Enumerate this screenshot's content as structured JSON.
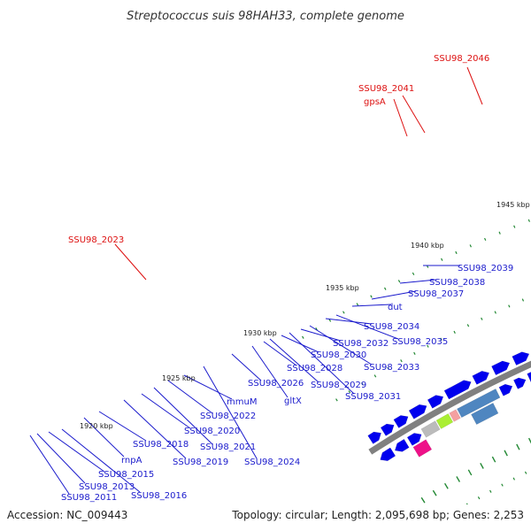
{
  "title": "Streptococcus suis 98HAH33, complete genome",
  "accession_text": "Accession: NC_009443",
  "summary_text": "Topology: circular; Length: 2,095,698 bp; Genes: 2,253",
  "ticks": [
    "1920 kbp",
    "1925 kbp",
    "1930 kbp",
    "1935 kbp",
    "1940 kbp",
    "1945 kbp"
  ],
  "blue_labels": [
    "SSU98_2011",
    "SSU98_2013",
    "SSU98_2015",
    "SSU98_2016",
    "rnpA",
    "SSU98_2018",
    "SSU98_2019",
    "SSU98_2020",
    "SSU98_2021",
    "SSU98_2022",
    "mmuM",
    "SSU98_2024",
    "SSU98_2026",
    "gltX",
    "SSU98_2028",
    "SSU98_2029",
    "SSU98_2030",
    "SSU98_2031",
    "SSU98_2032",
    "SSU98_2033",
    "SSU98_2034",
    "SSU98_2035",
    "dut",
    "SSU98_2037",
    "SSU98_2038",
    "SSU98_2039"
  ],
  "red_labels": [
    "SSU98_2023",
    "SSU98_2041",
    "gpsA",
    "SSU98_2046"
  ],
  "colors": {
    "backbone": "#808080",
    "gene_blue": "#0000ee",
    "gene_red": "#ee0000",
    "steelblue": "#4f86c0",
    "pink": "#f4a0a0",
    "magenta": "#ee1188",
    "cyan": "#22e0ee",
    "olive": "#889933",
    "khaki": "#b4b47a",
    "aquamarine": "#66eebb",
    "orange": "#ff9922",
    "lime": "#aaee33",
    "gray": "#bbbbbb",
    "darkgray": "#555555",
    "slate": "#554499",
    "dots": "#228833",
    "label_blue": "#1a1acc",
    "label_red": "#dd1111"
  }
}
